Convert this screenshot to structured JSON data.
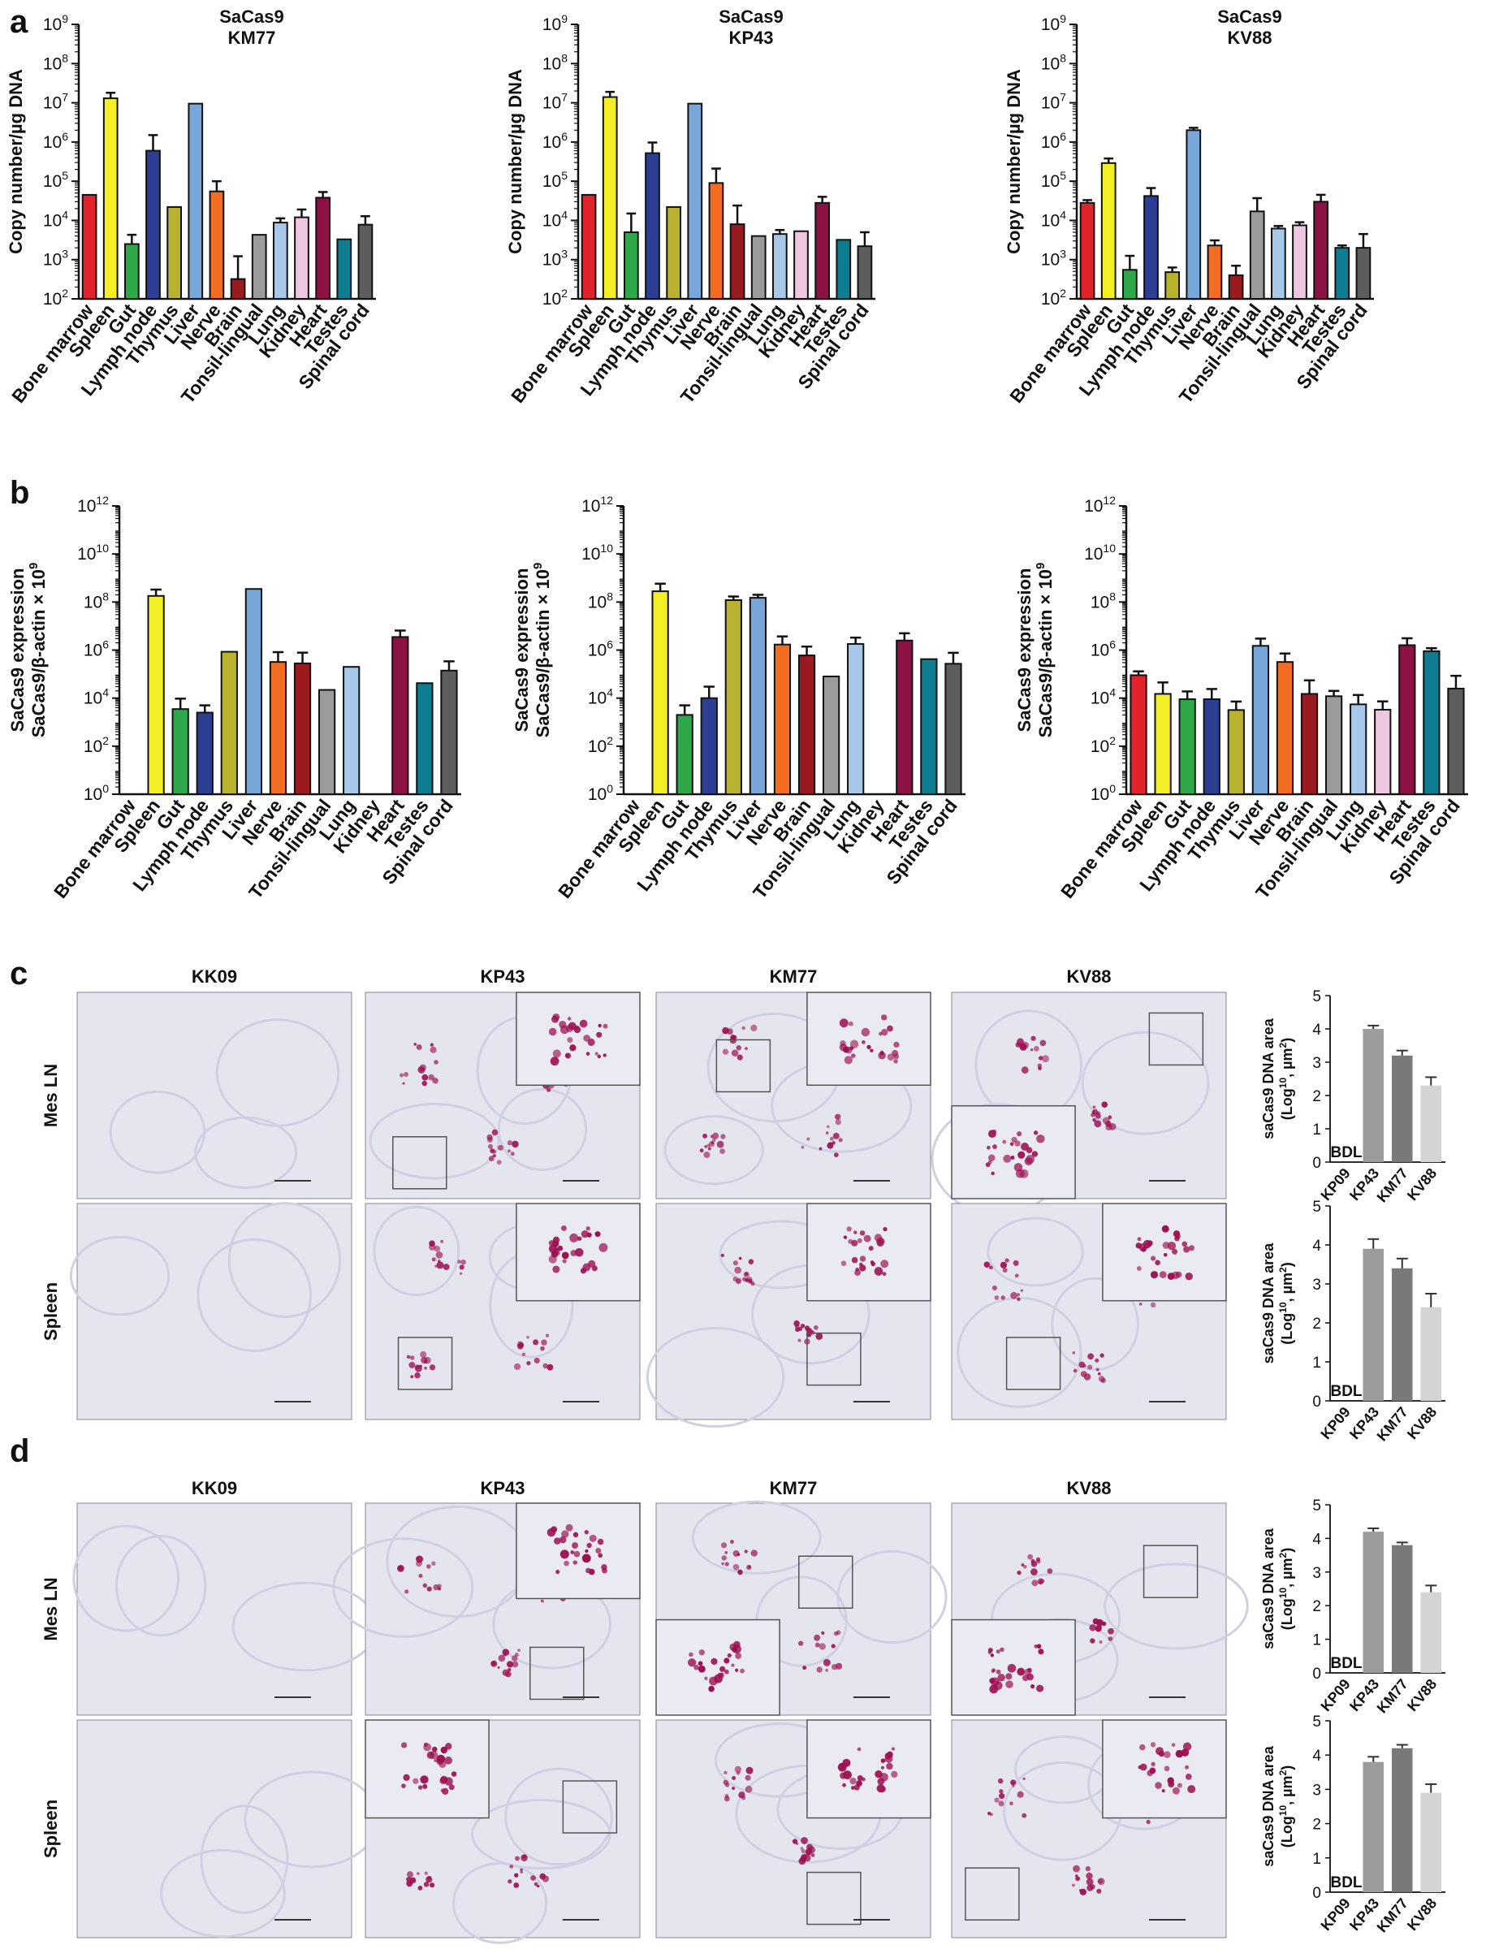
{
  "colors": {
    "Bone marrow": "#e3232b",
    "Spleen": "#f4ee27",
    "Gut": "#2fa84a",
    "Lymph node": "#2e3f93",
    "Thymus": "#b9b22e",
    "Liver": "#77a7d8",
    "Nerve": "#f26c22",
    "Brain": "#9a1b1f",
    "Tonsil-lingual": "#9b9b9b",
    "Lung": "#a8c8ea",
    "Kidney": "#efc6df",
    "Heart": "#8c1244",
    "Testes": "#0f7d91",
    "Spinal cord": "#5d5d5d",
    "tissue_bg": "#e4e5ef",
    "stain": "#9c1150",
    "bar_KP43": "#9c9c9c",
    "bar_KM77": "#797979",
    "bar_KV88": "#d4d4d4"
  },
  "panel_letters": [
    "a",
    "b",
    "c",
    "d"
  ],
  "ylabel_a": "Copy number/µg DNA",
  "ylabel_b_line1": "SaCas9 expression",
  "ylabel_b_line2": "SaCas9/β-actin × 10",
  "ylabel_b_sup": "9",
  "micro_row_labels": [
    "Mes LN",
    "Spleen"
  ],
  "micro_col_labels": [
    "KK09",
    "KP43",
    "KM77",
    "KV88"
  ],
  "small_ylabel_line1": "saCas9 DNA area",
  "small_ylabel_line2": "(Log",
  "small_ylabel_sup": "10",
  "small_ylabel_line3": ", µm",
  "small_ylabel_sup2": "2",
  "small_ylabel_line4": ")",
  "bdl_label": "BDL",
  "chart_data": [
    {
      "id": "a1",
      "type": "bar",
      "title_line1": "SaCas9",
      "title_line2": "KM77",
      "yscale": "log",
      "ylim": [
        100,
        1000000000
      ],
      "yticks_exp": [
        2,
        3,
        4,
        5,
        6,
        7,
        8,
        9
      ],
      "categories": [
        "Bone marrow",
        "Spleen",
        "Gut",
        "Lymph node",
        "Thymus",
        "Liver",
        "Nerve",
        "Brain",
        "Tonsil-lingual",
        "Lung",
        "Kidney",
        "Heart",
        "Testes",
        "Spinal cord"
      ],
      "values": [
        45000,
        13000000,
        2500,
        600000,
        22000,
        9500000,
        55000,
        320,
        4300,
        8800,
        12000,
        38000,
        3300,
        7800
      ],
      "errors": [
        0,
        5000000,
        1800,
        900000,
        0,
        0,
        45000,
        900,
        0,
        2500,
        7000,
        15000,
        0,
        5000
      ]
    },
    {
      "id": "a2",
      "type": "bar",
      "title_line1": "SaCas9",
      "title_line2": "KP43",
      "yscale": "log",
      "ylim": [
        100,
        1000000000
      ],
      "yticks_exp": [
        2,
        3,
        4,
        5,
        6,
        7,
        8,
        9
      ],
      "categories": [
        "Bone marrow",
        "Spleen",
        "Gut",
        "Lymph node",
        "Thymus",
        "Liver",
        "Nerve",
        "Brain",
        "Tonsil-lingual",
        "Lung",
        "Kidney",
        "Heart",
        "Testes",
        "Spinal cord"
      ],
      "values": [
        45000,
        14000000,
        5000,
        520000,
        22000,
        9500000,
        90000,
        8000,
        4000,
        4500,
        5300,
        28000,
        3200,
        2200
      ],
      "errors": [
        0,
        5000000,
        10000,
        450000,
        0,
        0,
        120000,
        16000,
        0,
        1200,
        0,
        12000,
        0,
        2800
      ]
    },
    {
      "id": "a3",
      "type": "bar",
      "title_line1": "SaCas9",
      "title_line2": "KV88",
      "yscale": "log",
      "ylim": [
        100,
        1000000000
      ],
      "yticks_exp": [
        2,
        3,
        4,
        5,
        6,
        7,
        8,
        9
      ],
      "categories": [
        "Bone marrow",
        "Spleen",
        "Gut",
        "Lymph node",
        "Thymus",
        "Liver",
        "Nerve",
        "Brain",
        "Tonsil-lingual",
        "Lung",
        "Kidney",
        "Heart",
        "Testes",
        "Spinal cord"
      ],
      "values": [
        28000,
        290000,
        550,
        42000,
        480,
        2000000,
        2300,
        400,
        17000,
        6200,
        7500,
        30000,
        2000,
        2000
      ],
      "errors": [
        5000,
        90000,
        700,
        25000,
        150,
        300000,
        800,
        300,
        20000,
        1000,
        1500,
        15000,
        300,
        2500
      ]
    },
    {
      "id": "b1",
      "type": "bar",
      "title_line1": "",
      "title_line2": "",
      "yscale": "log",
      "ylim": [
        1,
        1000000000000
      ],
      "yticks_exp": [
        0,
        2,
        4,
        6,
        8,
        10,
        12
      ],
      "categories": [
        "Bone marrow",
        "Spleen",
        "Gut",
        "Lymph node",
        "Thymus",
        "Liver",
        "Nerve",
        "Brain",
        "Tonsil-lingual",
        "Lung",
        "Kidney",
        "Heart",
        "Testes",
        "Spinal cord"
      ],
      "values": [
        null,
        180000000,
        3500,
        2500,
        850000,
        350000000,
        320000,
        280000,
        22000,
        200000,
        null,
        3500000,
        42000,
        140000
      ],
      "errors": [
        0,
        150000000,
        6000,
        2500,
        0,
        0,
        500000,
        500000,
        0,
        0,
        0,
        3000000,
        0,
        200000
      ]
    },
    {
      "id": "b2",
      "type": "bar",
      "title_line1": "",
      "title_line2": "",
      "yscale": "log",
      "ylim": [
        1,
        1000000000000
      ],
      "yticks_exp": [
        0,
        2,
        4,
        6,
        8,
        10,
        12
      ],
      "categories": [
        "Bone marrow",
        "Spleen",
        "Gut",
        "Lymph node",
        "Thymus",
        "Liver",
        "Nerve",
        "Brain",
        "Tonsil-lingual",
        "Lung",
        "Kidney",
        "Heart",
        "Testes",
        "Spinal cord"
      ],
      "values": [
        null,
        280000000,
        2000,
        10000,
        120000000,
        150000000,
        1700000,
        600000,
        80000,
        1800000,
        null,
        2500000,
        420000,
        270000
      ],
      "errors": [
        0,
        300000000,
        3000,
        20000,
        50000000,
        50000000,
        2000000,
        800000,
        0,
        1500000,
        0,
        2500000,
        0,
        500000
      ]
    },
    {
      "id": "b3",
      "type": "bar",
      "title_line1": "",
      "title_line2": "",
      "yscale": "log",
      "ylim": [
        1,
        1000000000000
      ],
      "yticks_exp": [
        0,
        2,
        4,
        6,
        8,
        10,
        12
      ],
      "categories": [
        "Bone marrow",
        "Spleen",
        "Gut",
        "Lymph node",
        "Thymus",
        "Liver",
        "Nerve",
        "Brain",
        "Tonsil-lingual",
        "Lung",
        "Kidney",
        "Heart",
        "Testes",
        "Spinal cord"
      ],
      "values": [
        90000,
        15000,
        9000,
        9000,
        3200,
        1500000,
        320000,
        15000,
        12000,
        5500,
        3300,
        1600000,
        900000,
        25000
      ],
      "errors": [
        40000,
        30000,
        10000,
        15000,
        4000,
        1500000,
        400000,
        40000,
        8000,
        8000,
        4000,
        1500000,
        300000,
        60000
      ]
    },
    {
      "id": "c1",
      "type": "bar",
      "yscale": "linear",
      "ylim": [
        0,
        5
      ],
      "yticks": [
        0,
        1,
        2,
        3,
        4,
        5
      ],
      "categories": [
        "KP09",
        "KP43",
        "KM77",
        "KV88"
      ],
      "values": [
        null,
        4.0,
        3.2,
        2.3
      ],
      "errors": [
        0,
        0.1,
        0.15,
        0.25
      ]
    },
    {
      "id": "c2",
      "type": "bar",
      "yscale": "linear",
      "ylim": [
        0,
        5
      ],
      "yticks": [
        0,
        1,
        2,
        3,
        4,
        5
      ],
      "categories": [
        "KP09",
        "KP43",
        "KM77",
        "KV88"
      ],
      "values": [
        null,
        3.9,
        3.4,
        2.4
      ],
      "errors": [
        0,
        0.25,
        0.25,
        0.35
      ]
    },
    {
      "id": "d1",
      "type": "bar",
      "yscale": "linear",
      "ylim": [
        0,
        5
      ],
      "yticks": [
        0,
        1,
        2,
        3,
        4,
        5
      ],
      "categories": [
        "KP09",
        "KP43",
        "KM77",
        "KV88"
      ],
      "values": [
        null,
        4.2,
        3.8,
        2.4
      ],
      "errors": [
        0,
        0.1,
        0.08,
        0.2
      ]
    },
    {
      "id": "d2",
      "type": "bar",
      "yscale": "linear",
      "ylim": [
        0,
        5
      ],
      "yticks": [
        0,
        1,
        2,
        3,
        4,
        5
      ],
      "categories": [
        "KP09",
        "KP43",
        "KM77",
        "KV88"
      ],
      "values": [
        null,
        3.8,
        4.2,
        2.9
      ],
      "errors": [
        0,
        0.15,
        0.1,
        0.25
      ]
    }
  ]
}
